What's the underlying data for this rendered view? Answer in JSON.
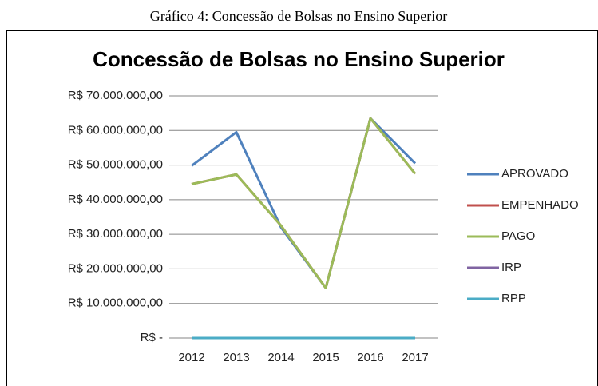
{
  "caption": "Gráfico 4: Concessão de Bolsas no Ensino Superior",
  "chart_data": {
    "type": "line",
    "title": "Concessão de Bolsas no Ensino Superior",
    "categories": [
      "2012",
      "2013",
      "2014",
      "2015",
      "2016",
      "2017"
    ],
    "series": [
      {
        "name": "APROVADO",
        "color": "#4f81bd",
        "values": [
          49800000,
          59500000,
          32000000,
          14500000,
          63500000,
          50500000
        ]
      },
      {
        "name": "EMPENHADO",
        "color": "#c0504d",
        "values": [
          44500000,
          47300000,
          32500000,
          14500000,
          63500000,
          47500000
        ]
      },
      {
        "name": "PAGO",
        "color": "#9bbb59",
        "values": [
          44500000,
          47300000,
          32500000,
          14500000,
          63500000,
          47500000
        ]
      },
      {
        "name": "IRP",
        "color": "#8064a2",
        "values": [
          0,
          0,
          0,
          0,
          0,
          0
        ]
      },
      {
        "name": "RPP",
        "color": "#4bacc6",
        "values": [
          0,
          0,
          0,
          0,
          0,
          0
        ]
      }
    ],
    "ylim": [
      0,
      70000000
    ],
    "yticks": [
      {
        "value": 0,
        "label": "R$ -"
      },
      {
        "value": 10000000,
        "label": "R$ 10.000.000,00"
      },
      {
        "value": 20000000,
        "label": "R$ 20.000.000,00"
      },
      {
        "value": 30000000,
        "label": "R$ 30.000.000,00"
      },
      {
        "value": 40000000,
        "label": "R$ 40.000.000,00"
      },
      {
        "value": 50000000,
        "label": "R$ 50.000.000,00"
      },
      {
        "value": 60000000,
        "label": "R$ 60.000.000,00"
      },
      {
        "value": 70000000,
        "label": "R$ 70.000.000,00"
      }
    ],
    "grid": true,
    "legend": "right"
  }
}
